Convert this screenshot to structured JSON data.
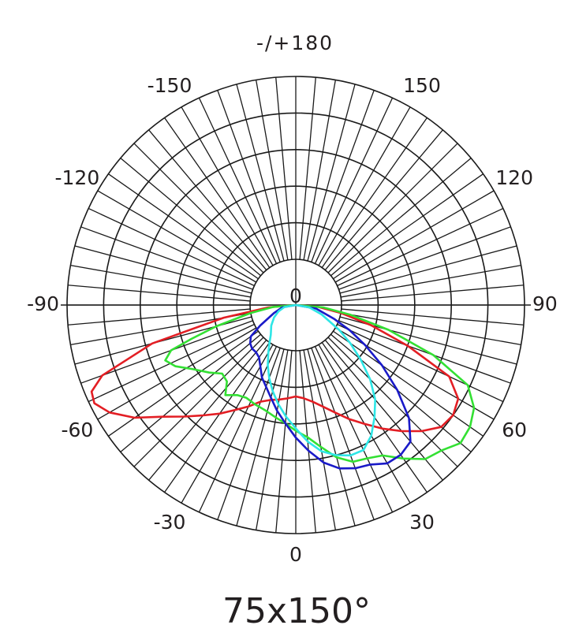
{
  "chart_data": {
    "type": "polar",
    "title": "75x150°",
    "top_label": "-/+180",
    "angle_labels": [
      "150",
      "120",
      "90",
      "60",
      "30",
      "0",
      "-30",
      "-60",
      "-90",
      "-120",
      "-150"
    ],
    "angle_label_values": [
      150,
      120,
      90,
      60,
      30,
      0,
      -30,
      -60,
      -90,
      -120,
      -150
    ],
    "center_label": "0",
    "radial_rings": 5,
    "spoke_step_deg": 5,
    "grid": true,
    "series": [
      {
        "color": "#e31e24",
        "points": [
          [
            -90,
            0
          ],
          [
            -85,
            0.12
          ],
          [
            -80,
            0.32
          ],
          [
            -75,
            0.65
          ],
          [
            -70,
            0.9
          ],
          [
            -67,
            0.97
          ],
          [
            -64,
            0.98
          ],
          [
            -60,
            0.94
          ],
          [
            -55,
            0.86
          ],
          [
            -50,
            0.76
          ],
          [
            -45,
            0.69
          ],
          [
            -40,
            0.63
          ],
          [
            -35,
            0.58
          ],
          [
            -30,
            0.53
          ],
          [
            -25,
            0.49
          ],
          [
            -20,
            0.45
          ],
          [
            -15,
            0.43
          ],
          [
            -10,
            0.42
          ],
          [
            -5,
            0.41
          ],
          [
            0,
            0.4
          ],
          [
            5,
            0.41
          ],
          [
            10,
            0.43
          ],
          [
            15,
            0.46
          ],
          [
            20,
            0.5
          ],
          [
            25,
            0.55
          ],
          [
            30,
            0.6
          ],
          [
            35,
            0.66
          ],
          [
            40,
            0.72
          ],
          [
            45,
            0.78
          ],
          [
            50,
            0.83
          ],
          [
            55,
            0.84
          ],
          [
            60,
            0.82
          ],
          [
            65,
            0.74
          ],
          [
            70,
            0.52
          ],
          [
            75,
            0.34
          ],
          [
            80,
            0.2
          ],
          [
            85,
            0.1
          ],
          [
            90,
            0
          ]
        ]
      },
      {
        "color": "#33e033",
        "points": [
          [
            -90,
            0
          ],
          [
            -85,
            0.1
          ],
          [
            -80,
            0.2
          ],
          [
            -75,
            0.36
          ],
          [
            -72,
            0.48
          ],
          [
            -70,
            0.58
          ],
          [
            -67,
            0.62
          ],
          [
            -63,
            0.59
          ],
          [
            -58,
            0.53
          ],
          [
            -52,
            0.48
          ],
          [
            -47,
            0.44
          ],
          [
            -42,
            0.45
          ],
          [
            -38,
            0.5
          ],
          [
            -33,
            0.47
          ],
          [
            -28,
            0.46
          ],
          [
            -22,
            0.47
          ],
          [
            -16,
            0.48
          ],
          [
            -10,
            0.5
          ],
          [
            -5,
            0.52
          ],
          [
            0,
            0.55
          ],
          [
            5,
            0.58
          ],
          [
            10,
            0.63
          ],
          [
            15,
            0.69
          ],
          [
            20,
            0.73
          ],
          [
            25,
            0.74
          ],
          [
            30,
            0.76
          ],
          [
            35,
            0.82
          ],
          [
            40,
            0.88
          ],
          [
            45,
            0.9
          ],
          [
            50,
            0.94
          ],
          [
            55,
            0.93
          ],
          [
            60,
            0.9
          ],
          [
            65,
            0.83
          ],
          [
            70,
            0.64
          ],
          [
            75,
            0.42
          ],
          [
            80,
            0.24
          ],
          [
            85,
            0.12
          ],
          [
            90,
            0
          ]
        ]
      },
      {
        "color": "#1a1ac8",
        "points": [
          [
            -90,
            0
          ],
          [
            -80,
            0.06
          ],
          [
            -70,
            0.1
          ],
          [
            -60,
            0.18
          ],
          [
            -55,
            0.24
          ],
          [
            -50,
            0.26
          ],
          [
            -45,
            0.27
          ],
          [
            -40,
            0.27
          ],
          [
            -35,
            0.28
          ],
          [
            -30,
            0.31
          ],
          [
            -25,
            0.35
          ],
          [
            -20,
            0.38
          ],
          [
            -15,
            0.42
          ],
          [
            -10,
            0.47
          ],
          [
            -5,
            0.52
          ],
          [
            0,
            0.58
          ],
          [
            5,
            0.64
          ],
          [
            10,
            0.7
          ],
          [
            15,
            0.74
          ],
          [
            20,
            0.76
          ],
          [
            25,
            0.77
          ],
          [
            30,
            0.8
          ],
          [
            35,
            0.8
          ],
          [
            40,
            0.78
          ],
          [
            45,
            0.7
          ],
          [
            50,
            0.58
          ],
          [
            55,
            0.46
          ],
          [
            60,
            0.35
          ],
          [
            65,
            0.26
          ],
          [
            70,
            0.18
          ],
          [
            80,
            0.09
          ],
          [
            90,
            0
          ]
        ]
      },
      {
        "color": "#2ee6e6",
        "points": [
          [
            -90,
            0
          ],
          [
            -80,
            0.05
          ],
          [
            -70,
            0.08
          ],
          [
            -60,
            0.11
          ],
          [
            -50,
            0.14
          ],
          [
            -40,
            0.17
          ],
          [
            -35,
            0.2
          ],
          [
            -30,
            0.24
          ],
          [
            -25,
            0.29
          ],
          [
            -20,
            0.34
          ],
          [
            -15,
            0.39
          ],
          [
            -10,
            0.44
          ],
          [
            -5,
            0.49
          ],
          [
            0,
            0.54
          ],
          [
            5,
            0.6
          ],
          [
            10,
            0.65
          ],
          [
            15,
            0.68
          ],
          [
            20,
            0.7
          ],
          [
            25,
            0.7
          ],
          [
            30,
            0.66
          ],
          [
            35,
            0.6
          ],
          [
            40,
            0.54
          ],
          [
            45,
            0.46
          ],
          [
            50,
            0.37
          ],
          [
            55,
            0.29
          ],
          [
            60,
            0.22
          ],
          [
            70,
            0.12
          ],
          [
            80,
            0.06
          ],
          [
            90,
            0
          ]
        ]
      }
    ]
  }
}
